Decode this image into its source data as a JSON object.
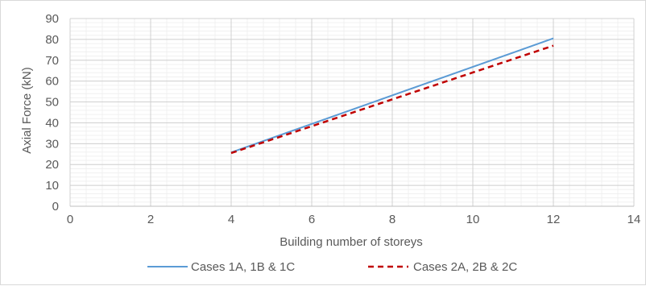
{
  "chart_data": {
    "type": "line",
    "title": "",
    "xlabel": "Building number of storeys",
    "ylabel": "Axial Force (kN)",
    "xlim": [
      0,
      14
    ],
    "ylim": [
      0,
      90
    ],
    "x_ticks": [
      0,
      2,
      4,
      6,
      8,
      10,
      12,
      14
    ],
    "y_ticks": [
      0,
      10,
      20,
      30,
      40,
      50,
      60,
      70,
      80,
      90
    ],
    "major_grid": true,
    "minor_grid": true,
    "legend_position": "bottom",
    "series": [
      {
        "name": "Cases 1A, 1B & 1C",
        "color": "#5b9bd5",
        "style": "solid",
        "x": [
          4,
          12
        ],
        "y": [
          25.8,
          80.5
        ]
      },
      {
        "name": "Cases 2A, 2B & 2C",
        "color": "#c00000",
        "style": "dashed",
        "x": [
          4,
          12
        ],
        "y": [
          25.5,
          77.0
        ]
      }
    ]
  }
}
